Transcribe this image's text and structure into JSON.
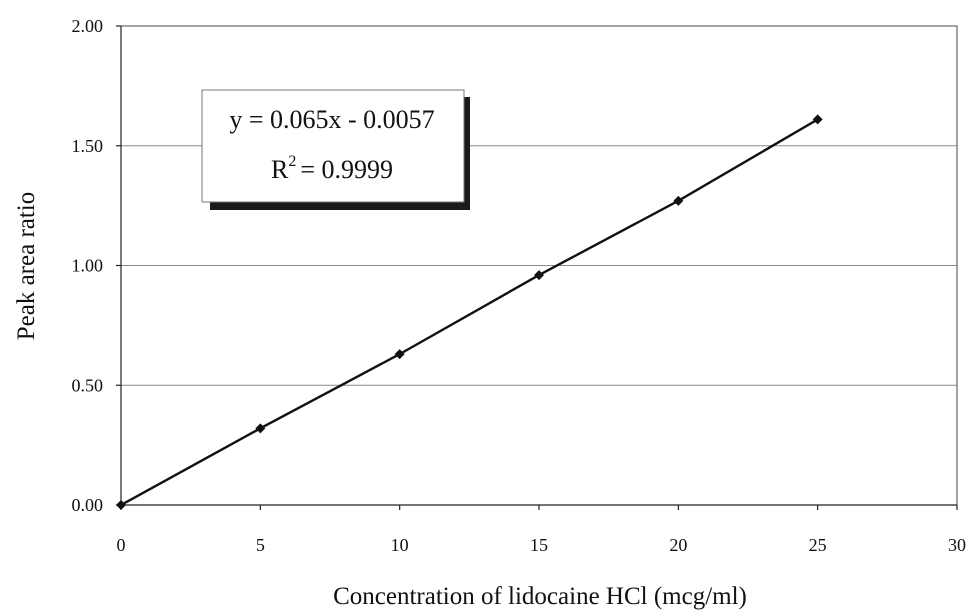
{
  "chart_data": {
    "type": "scatter",
    "x_label": "Concentration of lidocaine HCl (mcg/ml)",
    "y_label": "Peak area ratio",
    "x_ticks": [
      "0",
      "5",
      "10",
      "15",
      "20",
      "25",
      "30"
    ],
    "y_ticks": [
      "0.00",
      "0.50",
      "1.00",
      "1.50",
      "2.00"
    ],
    "x_range": [
      0,
      30
    ],
    "y_range": [
      0,
      2
    ],
    "grid": "horizontal",
    "series": [
      {
        "x": [
          0,
          5,
          10,
          15,
          20,
          25
        ],
        "y": [
          0.0,
          0.32,
          0.63,
          0.96,
          1.27,
          1.61
        ]
      }
    ],
    "trendline": {
      "equation": "y = 0.065x - 0.0057",
      "r_squared_prefix": "R",
      "r_squared_exponent": "2",
      "r_squared_value": "= 0.9999"
    },
    "colors": {
      "line": "#111111",
      "marker": "#111111",
      "grid": "#8a8a8a"
    }
  }
}
